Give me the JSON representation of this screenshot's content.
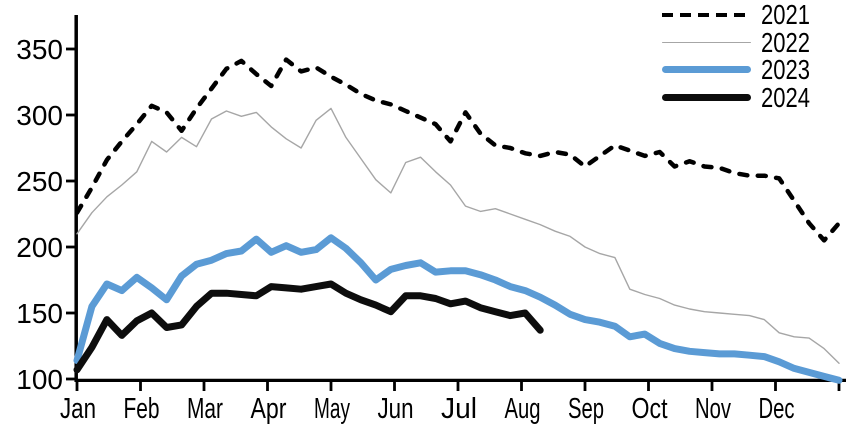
{
  "chart_data": {
    "type": "line",
    "title": "",
    "subtitle": "",
    "x_axis": {
      "label_type": "months",
      "months": [
        "Jan",
        "Feb",
        "Mar",
        "Apr",
        "May",
        "Jun",
        "Jul",
        "Aug",
        "Sep",
        "Oct",
        "Nov",
        "Dec"
      ],
      "points_per_series": 52,
      "grid": false
    },
    "y_axis": {
      "min": 100,
      "max": 350,
      "ticks": [
        100,
        150,
        200,
        250,
        300,
        350
      ],
      "grid": false
    },
    "legend": {
      "position": "top-right",
      "entries": [
        "2021",
        "2022",
        "2023",
        "2024"
      ]
    },
    "series": [
      {
        "name": "2021",
        "color": "#000000",
        "style": "dashed",
        "stroke_width": 4.5,
        "values": [
          226,
          245,
          266,
          280,
          293,
          307,
          302,
          288,
          305,
          320,
          335,
          341,
          331,
          322,
          342,
          333,
          336,
          329,
          323,
          316,
          311,
          308,
          303,
          298,
          293,
          280,
          302,
          286,
          277,
          275,
          271,
          269,
          272,
          270,
          261,
          269,
          277,
          273,
          269,
          272,
          261,
          265,
          261,
          260,
          256,
          254,
          254,
          252,
          235,
          218,
          205,
          218
        ]
      },
      {
        "name": "2022",
        "color": "#a6a6a6",
        "style": "solid",
        "stroke_width": 1.4,
        "values": [
          210,
          226,
          238,
          247,
          257,
          280,
          272,
          283,
          276,
          297,
          303,
          299,
          302,
          291,
          282,
          275,
          296,
          305,
          283,
          267,
          251,
          241,
          264,
          268,
          257,
          247,
          231,
          227,
          229,
          225,
          221,
          217,
          212,
          208,
          200,
          195,
          192,
          168,
          164,
          161,
          156,
          153,
          151,
          150,
          149,
          148,
          145,
          135,
          132,
          131,
          123,
          112
        ]
      },
      {
        "name": "2023",
        "color": "#5b9bd5",
        "style": "solid",
        "stroke_width": 7,
        "values": [
          114,
          155,
          172,
          167,
          177,
          169,
          160,
          178,
          187,
          190,
          195,
          197,
          206,
          196,
          201,
          196,
          198,
          207,
          199,
          188,
          175,
          183,
          186,
          188,
          181,
          182,
          182,
          179,
          175,
          170,
          167,
          162,
          156,
          149,
          145,
          143,
          140,
          132,
          134,
          127,
          123,
          121,
          120,
          119,
          119,
          118,
          117,
          113,
          108,
          105,
          102,
          99
        ]
      },
      {
        "name": "2024",
        "color": "#0d0d0d",
        "style": "solid",
        "stroke_width": 7,
        "values": [
          107,
          124,
          145,
          133,
          144,
          150,
          139,
          141,
          155,
          165,
          165,
          164,
          163,
          170,
          169,
          168,
          170,
          172,
          165,
          160,
          156,
          151,
          163,
          163,
          161,
          157,
          159,
          154,
          151,
          148,
          150,
          137
        ]
      }
    ]
  }
}
